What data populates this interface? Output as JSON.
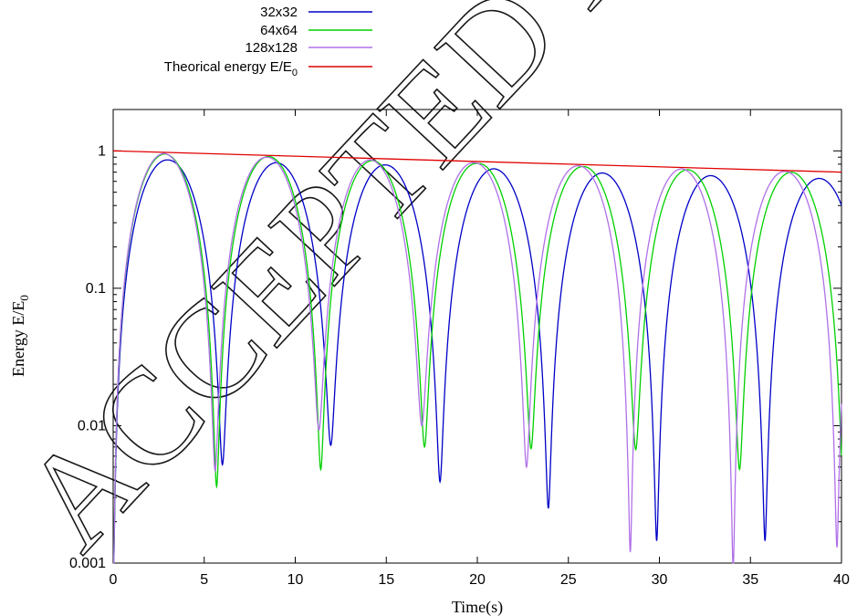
{
  "chart_data": {
    "type": "line",
    "xlabel": "Time(s)",
    "ylabel_main": "Energy E/E",
    "ylabel_sub": "0",
    "x_range": [
      0,
      40
    ],
    "y_range": [
      0.001,
      2
    ],
    "y_scale": "log",
    "grid": false,
    "legend_position": "top-center",
    "x_ticks": [
      {
        "value": 0,
        "label": "0"
      },
      {
        "value": 5,
        "label": "5"
      },
      {
        "value": 10,
        "label": "10"
      },
      {
        "value": 15,
        "label": "15"
      },
      {
        "value": 20,
        "label": "20"
      },
      {
        "value": 25,
        "label": "25"
      },
      {
        "value": 30,
        "label": "30"
      },
      {
        "value": 35,
        "label": "35"
      },
      {
        "value": 40,
        "label": "40"
      }
    ],
    "y_ticks": [
      {
        "value": 1,
        "label": "1"
      },
      {
        "value": 0.1,
        "label": "0.1"
      },
      {
        "value": 0.01,
        "label": "0.01"
      },
      {
        "value": 0.001,
        "label": "0.001"
      }
    ],
    "series": [
      {
        "name": "32x32",
        "color": "#0000c8",
        "period": 5.97,
        "peaks": [
          [
            2.85,
            0.86
          ],
          [
            9.0,
            0.82
          ],
          [
            15.0,
            0.79
          ],
          [
            21.0,
            0.74
          ],
          [
            26.9,
            0.69
          ],
          [
            32.9,
            0.66
          ],
          [
            38.8,
            0.63
          ]
        ],
        "minima": [
          [
            0.0,
            0.0006
          ],
          [
            6.0,
            0.0052
          ],
          [
            11.95,
            0.0072
          ],
          [
            17.95,
            0.0039
          ],
          [
            23.9,
            0.0025
          ],
          [
            29.85,
            0.00145
          ],
          [
            35.8,
            0.00145
          ]
        ]
      },
      {
        "name": "64x64",
        "color": "#00d000",
        "period": 5.72,
        "peaks": [
          [
            2.75,
            0.95
          ],
          [
            8.5,
            0.91
          ],
          [
            14.2,
            0.85
          ],
          [
            19.9,
            0.81
          ],
          [
            25.7,
            0.77
          ],
          [
            31.4,
            0.73
          ],
          [
            37.1,
            0.7
          ]
        ],
        "minima": [
          [
            0.0,
            0.0006
          ],
          [
            5.68,
            0.0036
          ],
          [
            11.4,
            0.0048
          ],
          [
            17.1,
            0.007
          ],
          [
            22.95,
            0.0068
          ],
          [
            28.7,
            0.0067
          ],
          [
            34.4,
            0.0048
          ],
          [
            40.1,
            0.004
          ]
        ]
      },
      {
        "name": "128x128",
        "color": "#b070e8",
        "period": 5.68,
        "peaks": [
          [
            2.7,
            0.96
          ],
          [
            8.35,
            0.9
          ],
          [
            14.05,
            0.86
          ],
          [
            19.75,
            0.82
          ],
          [
            25.4,
            0.78
          ],
          [
            31.1,
            0.74
          ],
          [
            36.7,
            0.71
          ]
        ],
        "minima": [
          [
            0.0,
            0.0006
          ],
          [
            5.6,
            0.0047
          ],
          [
            11.3,
            0.0093
          ],
          [
            16.95,
            0.01
          ],
          [
            22.7,
            0.005
          ],
          [
            28.4,
            0.0012
          ],
          [
            34.05,
            0.0009
          ],
          [
            39.75,
            0.0013
          ]
        ]
      },
      {
        "name": "Theorical energy E/E",
        "name_sub": "0",
        "color": "#e00000",
        "start": [
          0,
          1.0
        ],
        "end": [
          40,
          0.7
        ]
      }
    ]
  }
}
